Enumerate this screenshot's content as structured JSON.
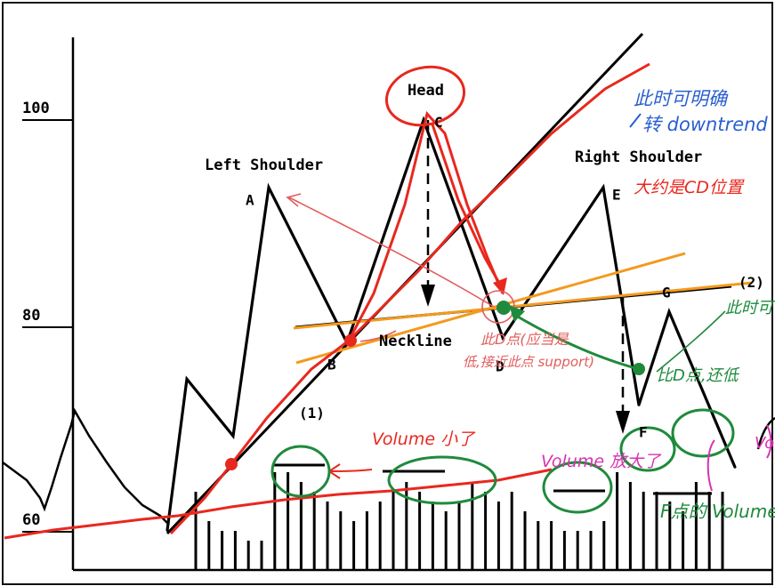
{
  "chart_data": {
    "type": "line",
    "title": "",
    "xlabel": "",
    "ylabel": "",
    "ylim": [
      58,
      110
    ],
    "y_ticks": [
      {
        "value": 100,
        "label": "100"
      },
      {
        "value": 80,
        "label": "80"
      },
      {
        "value": 60,
        "label": "60"
      }
    ],
    "grid": false,
    "price_series": {
      "name": "",
      "points": [
        {
          "x": 0,
          "y": 60.4
        },
        {
          "x": 1,
          "y": 75.0
        },
        {
          "x": 2,
          "y": 69.5
        },
        {
          "x": 3,
          "y": 93.5
        },
        {
          "x": 4,
          "y": 78.5
        },
        {
          "x": 5,
          "y": 100.0
        },
        {
          "x": 6,
          "y": 79.0
        },
        {
          "x": 7,
          "y": 93.5
        },
        {
          "x": 8,
          "y": 72.5
        },
        {
          "x": 9,
          "y": 81.5
        },
        {
          "x": 10,
          "y": 66.5
        }
      ]
    },
    "point_labels": [
      {
        "idx": 3,
        "text": "A"
      },
      {
        "idx": 4,
        "text": "B"
      },
      {
        "idx": 5,
        "text": "C"
      },
      {
        "idx": 6,
        "text": "D"
      },
      {
        "idx": 7,
        "text": "E"
      },
      {
        "idx": 8,
        "text": "F"
      },
      {
        "idx": 9,
        "text": "G"
      }
    ],
    "annotations": {
      "head": "Head",
      "left_shoulder": "Left Shoulder",
      "right_shoulder": "Right Shoulder",
      "neckline": "Neckline",
      "mark1": "(1)",
      "mark2": "(2)"
    },
    "volume_bars": [
      8,
      5,
      4,
      4,
      3,
      3,
      10,
      10,
      9,
      8,
      7,
      6,
      5,
      6,
      7,
      8,
      9,
      8,
      7,
      6,
      7,
      9,
      8,
      7,
      8,
      6,
      5,
      5,
      4,
      4,
      4,
      5,
      10,
      9,
      8,
      8,
      7,
      6,
      9,
      8,
      8
    ]
  },
  "handwritten": {
    "cn_top_1": "此时可明确",
    "cn_top_2": "转 downtrend",
    "cn_right_shoulder": "大约是CD位置",
    "cn_d_1": "此D点(应当是",
    "cn_d_2": "低,接近此点 support)",
    "volume_small": "Volume 小了",
    "volume_big": "Volume 放大了",
    "cn_f": "比D点,还低",
    "cn_g": "此时可",
    "cn_f_volume": "F点的 Volume",
    "volume_cut": "Vo"
  },
  "colors": {
    "ink": "#000000",
    "red": "#e8281e",
    "orange": "#f39a1e",
    "green": "#1f8a3c",
    "blue": "#2a5fd0",
    "pink": "#d833b0",
    "pale_red": "#e25c5c"
  }
}
